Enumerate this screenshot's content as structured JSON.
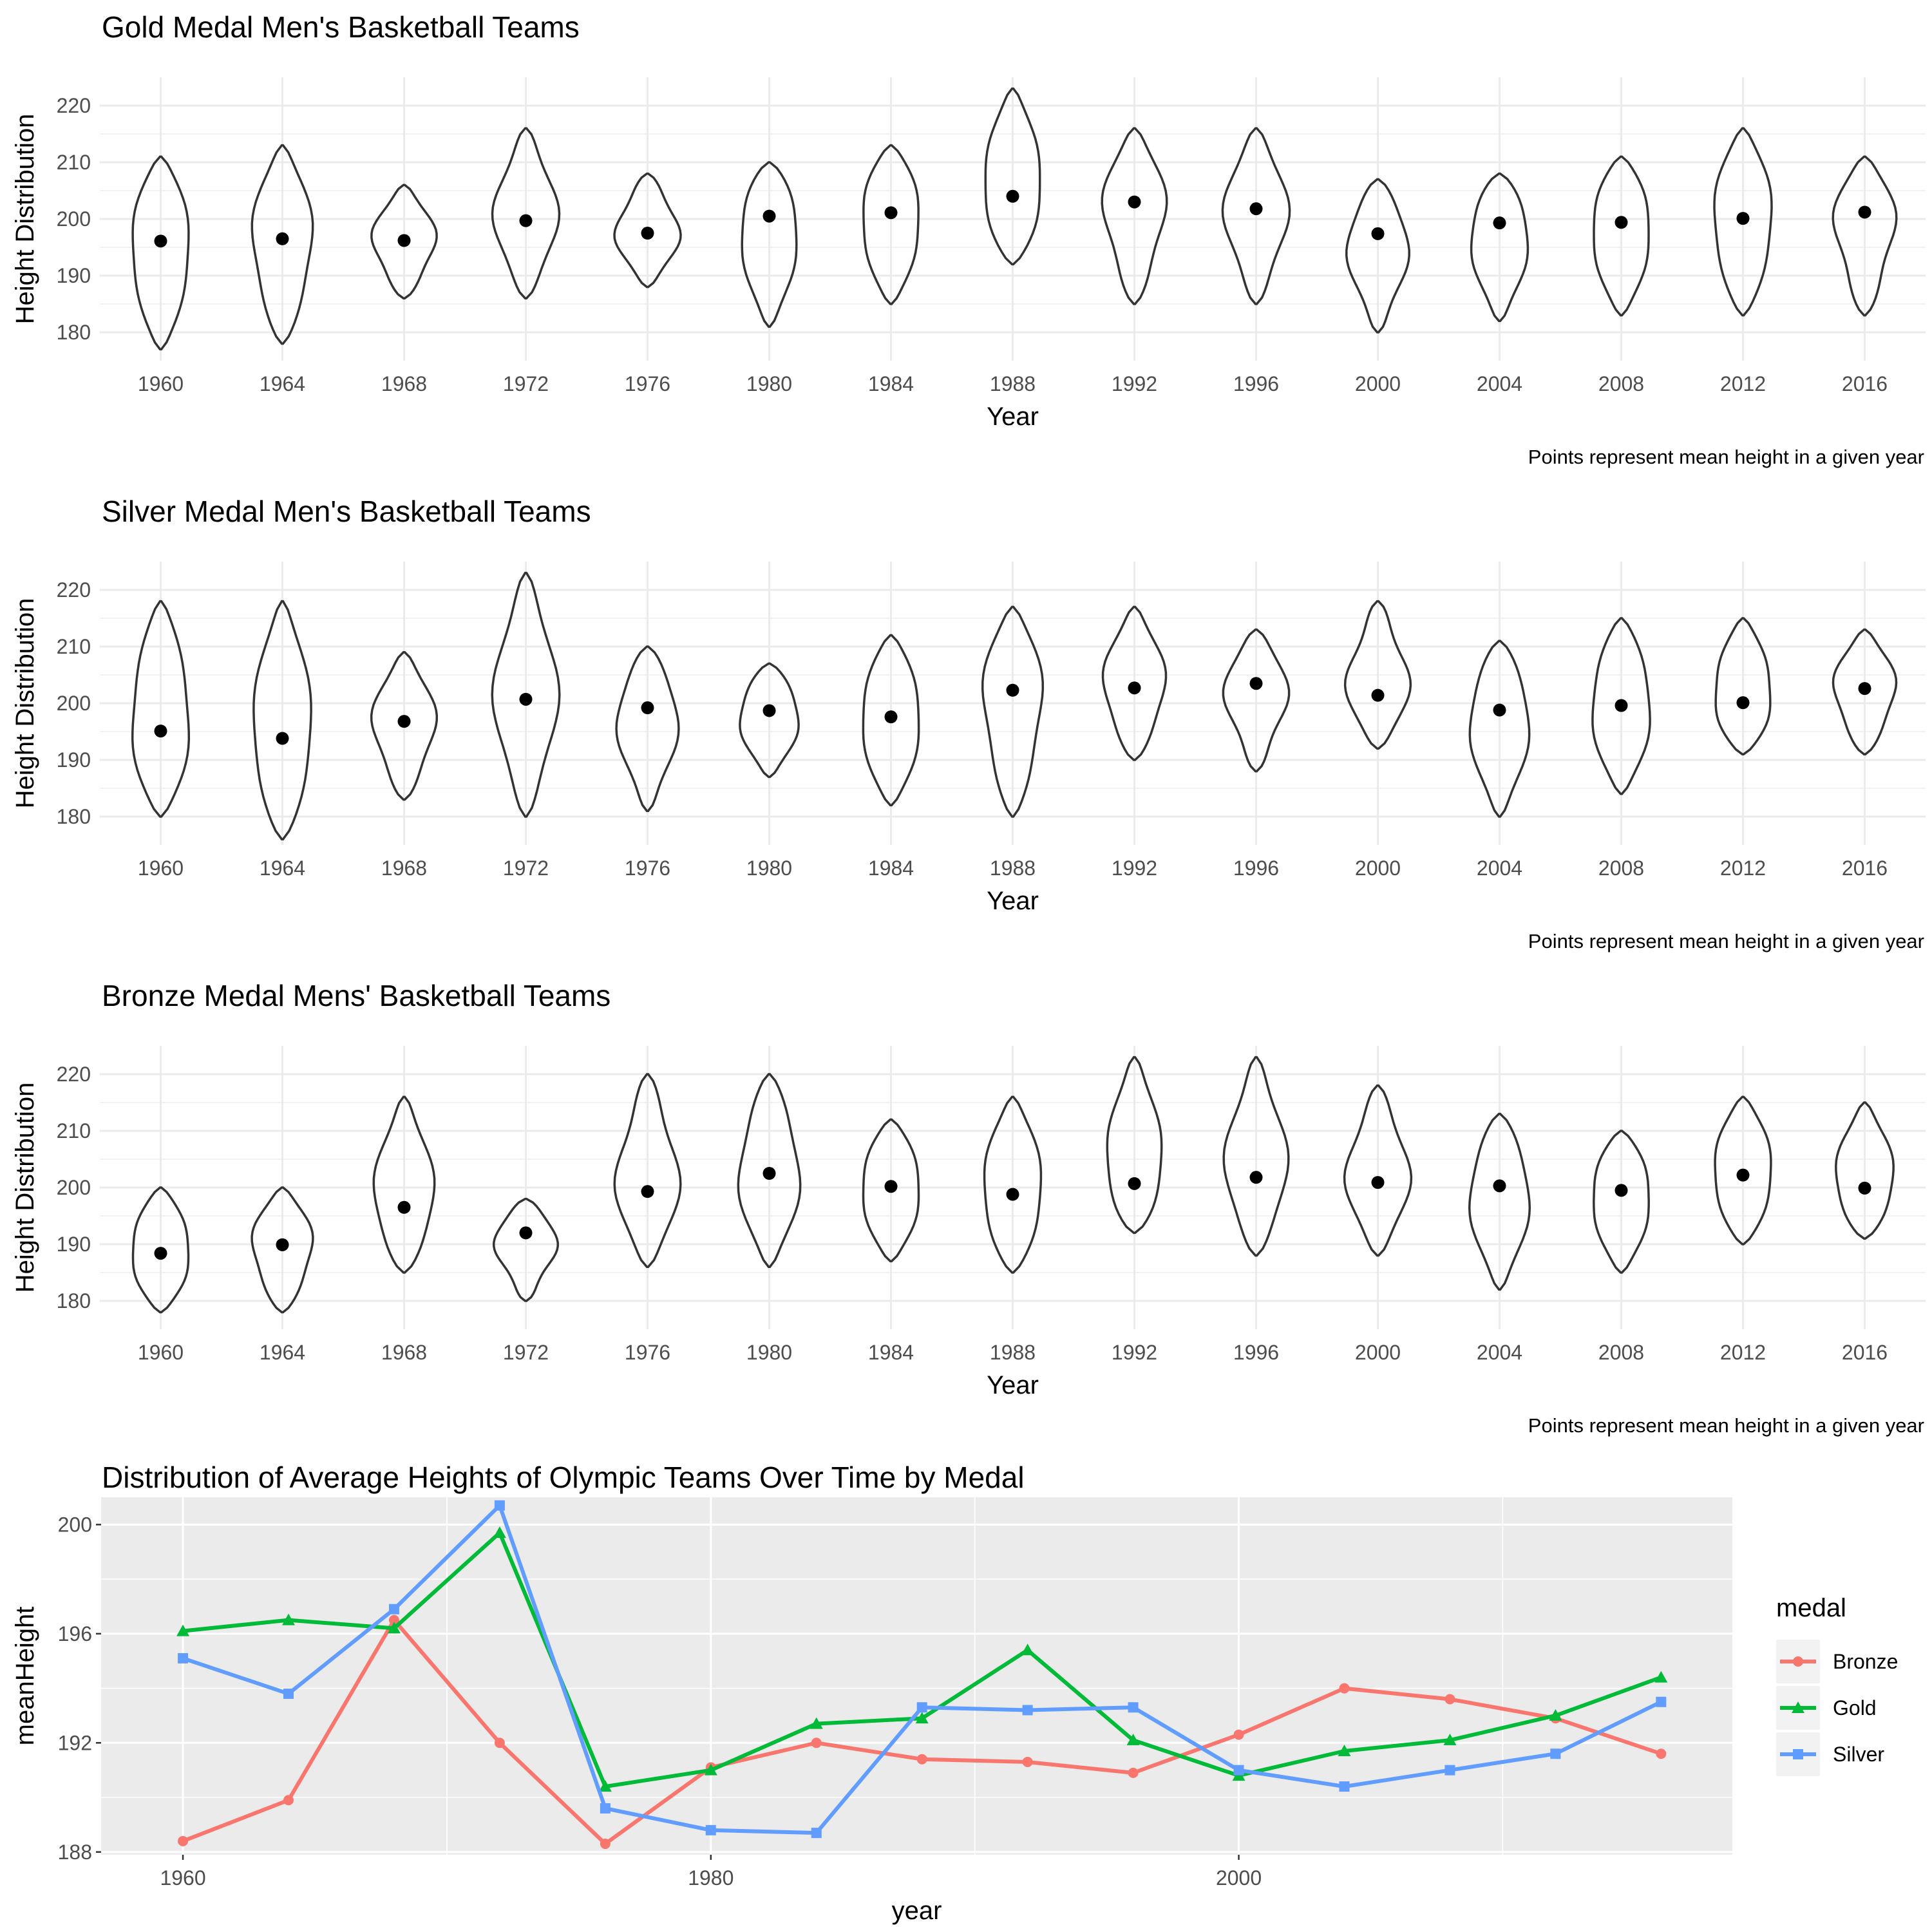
{
  "chart_data": [
    {
      "type": "violin",
      "title": "Gold Medal Men's Basketball Teams",
      "xlabel": "Year",
      "ylabel": "Height Distribution",
      "caption": "Points represent mean height in a given year",
      "ylim": [
        175,
        225
      ],
      "yticks": [
        180,
        190,
        200,
        210,
        220
      ],
      "categories": [
        "1960",
        "1964",
        "1968",
        "1972",
        "1976",
        "1980",
        "1984",
        "1988",
        "1992",
        "1996",
        "2000",
        "2004",
        "2008",
        "2012",
        "2016"
      ],
      "violins": [
        {
          "min": 177,
          "max": 211,
          "mean": 196.1
        },
        {
          "min": 178,
          "max": 213,
          "mean": 196.5
        },
        {
          "min": 186,
          "max": 206,
          "mean": 196.2
        },
        {
          "min": 186,
          "max": 216,
          "mean": 199.7
        },
        {
          "min": 188,
          "max": 208,
          "mean": 197.5
        },
        {
          "min": 181,
          "max": 210,
          "mean": 200.5
        },
        {
          "min": 185,
          "max": 213,
          "mean": 201.1
        },
        {
          "min": 192,
          "max": 223,
          "mean": 204.0
        },
        {
          "min": 185,
          "max": 216,
          "mean": 203.0
        },
        {
          "min": 185,
          "max": 216,
          "mean": 201.8
        },
        {
          "min": 180,
          "max": 207,
          "mean": 197.4
        },
        {
          "min": 182,
          "max": 208,
          "mean": 199.3
        },
        {
          "min": 183,
          "max": 211,
          "mean": 199.4
        },
        {
          "min": 183,
          "max": 216,
          "mean": 200.1
        },
        {
          "min": 183,
          "max": 211,
          "mean": 201.2
        }
      ]
    },
    {
      "type": "violin",
      "title": "Silver Medal Men's Basketball Teams",
      "xlabel": "Year",
      "ylabel": "Height Distribution",
      "caption": "Points represent mean height in a given year",
      "ylim": [
        175,
        225
      ],
      "yticks": [
        180,
        190,
        200,
        210,
        220
      ],
      "categories": [
        "1960",
        "1964",
        "1968",
        "1972",
        "1976",
        "1980",
        "1984",
        "1988",
        "1992",
        "1996",
        "2000",
        "2004",
        "2008",
        "2012",
        "2016"
      ],
      "violins": [
        {
          "min": 180,
          "max": 218,
          "mean": 195.1
        },
        {
          "min": 176,
          "max": 218,
          "mean": 193.8
        },
        {
          "min": 183,
          "max": 209,
          "mean": 196.8
        },
        {
          "min": 180,
          "max": 223,
          "mean": 200.7
        },
        {
          "min": 181,
          "max": 210,
          "mean": 199.2
        },
        {
          "min": 187,
          "max": 207,
          "mean": 198.7
        },
        {
          "min": 182,
          "max": 212,
          "mean": 197.6
        },
        {
          "min": 180,
          "max": 217,
          "mean": 202.3
        },
        {
          "min": 190,
          "max": 217,
          "mean": 202.7
        },
        {
          "min": 188,
          "max": 213,
          "mean": 203.5
        },
        {
          "min": 192,
          "max": 218,
          "mean": 201.4
        },
        {
          "min": 180,
          "max": 211,
          "mean": 198.8
        },
        {
          "min": 184,
          "max": 215,
          "mean": 199.6
        },
        {
          "min": 191,
          "max": 215,
          "mean": 200.1
        },
        {
          "min": 191,
          "max": 213,
          "mean": 202.6
        }
      ]
    },
    {
      "type": "violin",
      "title": "Bronze Medal Mens' Basketball Teams",
      "xlabel": "Year",
      "ylabel": "Height Distribution",
      "caption": "Points represent mean height in a given year",
      "ylim": [
        175,
        225
      ],
      "yticks": [
        180,
        190,
        200,
        210,
        220
      ],
      "categories": [
        "1960",
        "1964",
        "1968",
        "1972",
        "1976",
        "1980",
        "1984",
        "1988",
        "1992",
        "1996",
        "2000",
        "2004",
        "2008",
        "2012",
        "2016"
      ],
      "violins": [
        {
          "min": 178,
          "max": 200,
          "mean": 188.4
        },
        {
          "min": 178,
          "max": 200,
          "mean": 189.9
        },
        {
          "min": 185,
          "max": 216,
          "mean": 196.5
        },
        {
          "min": 180,
          "max": 198,
          "mean": 192.0
        },
        {
          "min": 186,
          "max": 220,
          "mean": 199.3
        },
        {
          "min": 186,
          "max": 220,
          "mean": 202.5
        },
        {
          "min": 187,
          "max": 212,
          "mean": 200.2
        },
        {
          "min": 185,
          "max": 216,
          "mean": 198.8
        },
        {
          "min": 192,
          "max": 223,
          "mean": 200.7
        },
        {
          "min": 188,
          "max": 223,
          "mean": 201.8
        },
        {
          "min": 188,
          "max": 218,
          "mean": 200.9
        },
        {
          "min": 182,
          "max": 213,
          "mean": 200.3
        },
        {
          "min": 185,
          "max": 210,
          "mean": 199.5
        },
        {
          "min": 190,
          "max": 216,
          "mean": 202.2
        },
        {
          "min": 191,
          "max": 215,
          "mean": 199.9
        }
      ]
    },
    {
      "type": "line",
      "title": "Distribution of Average Heights of Olympic Teams Over Time by Medal",
      "xlabel": "year",
      "ylabel": "meanHeight",
      "xlim": [
        1956.9,
        2018.7
      ],
      "ylim": [
        187.9,
        201.0
      ],
      "xticks": [
        1960,
        1980,
        2000
      ],
      "yticks": [
        188,
        192,
        196,
        200
      ],
      "legend_title": "medal",
      "legend_position": "right",
      "x": [
        1960,
        1964,
        1968,
        1972,
        1976,
        1980,
        1984,
        1988,
        1992,
        1996,
        2000,
        2004,
        2008,
        2012,
        2016
      ],
      "series": [
        {
          "name": "Bronze",
          "color": "#F8766D",
          "marker": "circle",
          "values": [
            188.4,
            189.9,
            196.5,
            192.0,
            188.3,
            191.1,
            192.0,
            191.4,
            191.3,
            190.9,
            192.3,
            194.0,
            193.6,
            192.9,
            191.6
          ]
        },
        {
          "name": "Gold",
          "color": "#00BA38",
          "marker": "triangle",
          "values": [
            196.1,
            196.5,
            196.2,
            199.7,
            190.4,
            191.0,
            192.7,
            192.9,
            195.4,
            192.1,
            190.8,
            191.7,
            192.1,
            193.0,
            194.4
          ]
        },
        {
          "name": "Silver",
          "color": "#619CFF",
          "marker": "square",
          "values": [
            195.1,
            193.8,
            196.9,
            200.7,
            189.6,
            188.8,
            188.7,
            193.3,
            193.2,
            193.3,
            191.0,
            190.4,
            191.0,
            191.6,
            193.5
          ]
        }
      ]
    }
  ]
}
